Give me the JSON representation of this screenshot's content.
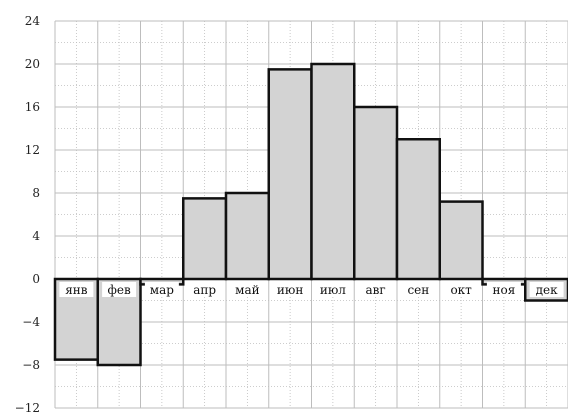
{
  "chart_data": {
    "type": "bar",
    "title": "",
    "xlabel": "",
    "ylabel": "",
    "categories": [
      "янв",
      "фев",
      "мар",
      "апр",
      "май",
      "июн",
      "июл",
      "авг",
      "сен",
      "окт",
      "ноя",
      "дек"
    ],
    "values": [
      -7.5,
      -8,
      -0.5,
      7.5,
      8,
      19.5,
      20,
      16,
      13,
      7.2,
      -0.5,
      -2
    ],
    "ylim": [
      -12,
      24
    ],
    "yticks": [
      -12,
      -8,
      -4,
      0,
      4,
      8,
      12,
      16,
      20,
      24
    ],
    "grid": true,
    "minor_grid": true,
    "colors": {
      "bar_fill": "#d3d3d3",
      "bar_stroke": "#111111",
      "grid": "#bdbdbd"
    }
  }
}
